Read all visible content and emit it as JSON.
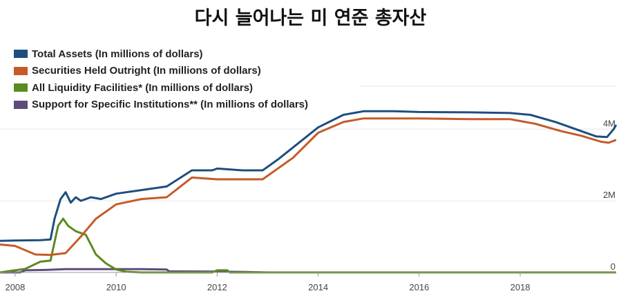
{
  "chart_data": {
    "type": "line",
    "title": "다시 늘어나는 미 연준 총자산",
    "xlim": [
      2007.7,
      2019.9
    ],
    "ylim": [
      0,
      5200000
    ],
    "grid": true,
    "legend_position": "top-left",
    "x_ticks": [
      {
        "value": 2008,
        "label": "2008"
      },
      {
        "value": 2010,
        "label": "2010"
      },
      {
        "value": 2012,
        "label": "2012"
      },
      {
        "value": 2014,
        "label": "2014"
      },
      {
        "value": 2016,
        "label": "2016"
      },
      {
        "value": 2018,
        "label": "2018"
      }
    ],
    "y_ticks": [
      {
        "value": 0,
        "label": "0"
      },
      {
        "value": 2000000,
        "label": "2M"
      },
      {
        "value": 4000000,
        "label": "4M"
      }
    ],
    "series": [
      {
        "name": "Total Assets (In millions of dollars)",
        "color": "#1d4e7e",
        "x": [
          2007.7,
          2008.0,
          2008.5,
          2008.7,
          2008.78,
          2008.9,
          2009.0,
          2009.1,
          2009.2,
          2009.3,
          2009.5,
          2009.7,
          2010.0,
          2010.5,
          2011.0,
          2011.5,
          2011.9,
          2012.0,
          2012.5,
          2012.9,
          2013.2,
          2013.6,
          2014.0,
          2014.5,
          2014.9,
          2015.5,
          2016.0,
          2017.0,
          2017.8,
          2018.2,
          2018.7,
          2019.1,
          2019.5,
          2019.72,
          2019.85,
          2019.9
        ],
        "values": [
          880000,
          890000,
          900000,
          920000,
          1500000,
          2050000,
          2240000,
          1950000,
          2100000,
          2000000,
          2100000,
          2050000,
          2200000,
          2300000,
          2400000,
          2850000,
          2850000,
          2900000,
          2850000,
          2850000,
          3150000,
          3600000,
          4050000,
          4400000,
          4500000,
          4500000,
          4480000,
          4470000,
          4450000,
          4400000,
          4200000,
          4000000,
          3800000,
          3780000,
          4000000,
          4120000
        ]
      },
      {
        "name": "Securities Held Outright (In millions of dollars)",
        "color": "#c65a28",
        "x": [
          2007.7,
          2008.0,
          2008.4,
          2008.7,
          2009.0,
          2009.3,
          2009.6,
          2010.0,
          2010.5,
          2011.0,
          2011.5,
          2012.0,
          2012.5,
          2012.9,
          2013.5,
          2014.0,
          2014.5,
          2014.9,
          2016.0,
          2017.0,
          2017.8,
          2018.3,
          2018.8,
          2019.2,
          2019.6,
          2019.75,
          2019.9
        ],
        "values": [
          780000,
          740000,
          500000,
          490000,
          540000,
          1000000,
          1500000,
          1900000,
          2050000,
          2100000,
          2650000,
          2600000,
          2600000,
          2600000,
          3200000,
          3900000,
          4200000,
          4300000,
          4300000,
          4280000,
          4280000,
          4150000,
          3950000,
          3820000,
          3650000,
          3620000,
          3700000
        ]
      },
      {
        "name": "All Liquidity Facilities* (In millions of dollars)",
        "color": "#5b8a1f",
        "x": [
          2007.7,
          2007.95,
          2008.2,
          2008.5,
          2008.7,
          2008.85,
          2008.95,
          2009.05,
          2009.2,
          2009.4,
          2009.6,
          2009.8,
          2010.0,
          2010.2,
          2010.5,
          2011.0,
          2011.9,
          2012.0,
          2012.2,
          2012.25,
          2012.5,
          2013.0,
          2019.9
        ],
        "values": [
          0,
          50000,
          100000,
          300000,
          330000,
          1300000,
          1500000,
          1300000,
          1150000,
          1050000,
          500000,
          250000,
          80000,
          20000,
          0,
          0,
          0,
          60000,
          60000,
          0,
          0,
          0,
          0
        ]
      },
      {
        "name": "Support for Specific Institutions** (In millions of dollars)",
        "color": "#5e4b7c",
        "x": [
          2007.7,
          2008.1,
          2008.2,
          2008.6,
          2009.0,
          2009.5,
          2010.0,
          2010.5,
          2011.0,
          2011.05,
          2012.0,
          2012.5,
          2013.0,
          2014.0,
          2019.9
        ],
        "values": [
          0,
          0,
          60000,
          70000,
          90000,
          90000,
          90000,
          90000,
          80000,
          30000,
          25000,
          15000,
          0,
          0,
          0
        ]
      }
    ]
  }
}
